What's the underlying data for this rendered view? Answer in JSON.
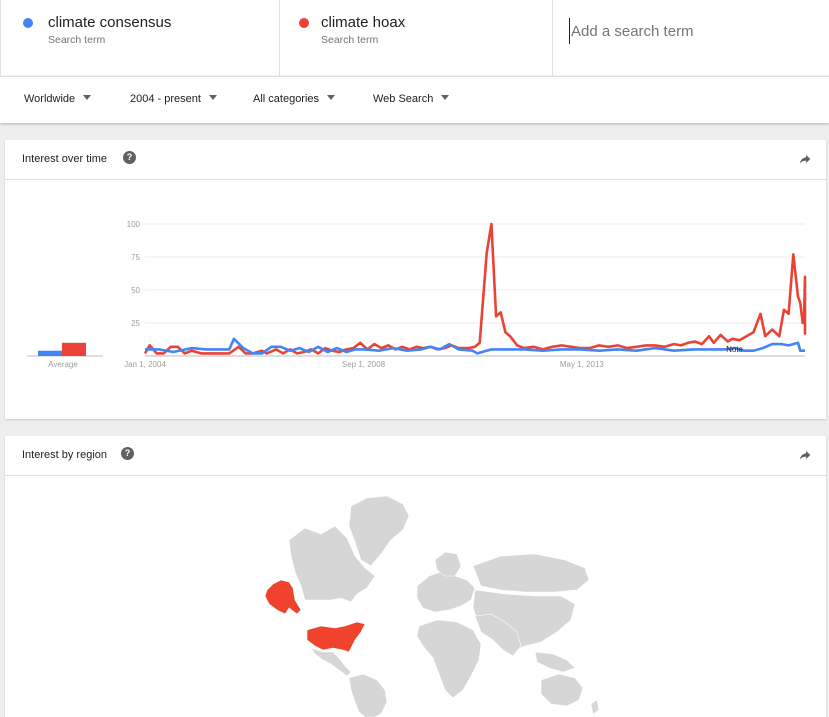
{
  "terms": [
    {
      "name": "climate consensus",
      "sub": "Search term",
      "color": "#4285f4"
    },
    {
      "name": "climate hoax",
      "sub": "Search term",
      "color": "#ea4335"
    }
  ],
  "search": {
    "placeholder": "Add a search term"
  },
  "filters": {
    "region": "Worldwide",
    "period": "2004 - present",
    "category": "All categories",
    "type": "Web Search"
  },
  "interest_over_time": {
    "title": "Interest over time",
    "help": "?"
  },
  "interest_by_region": {
    "title": "Interest by region",
    "help": "?"
  },
  "chart_data": {
    "type": "line",
    "title": "Interest over time",
    "ylim": [
      0,
      100
    ],
    "yticks": [
      "100",
      "75",
      "50",
      "25"
    ],
    "xticks": [
      "Jan 1, 2004",
      "Sep 1, 2008",
      "May 1, 2013"
    ],
    "xtick_years": [
      2004,
      2008.667,
      2013.333
    ],
    "xrange": [
      2004,
      2018.1
    ],
    "annotation": {
      "label": "Note",
      "x": 2016.5
    },
    "average": {
      "label": "Average",
      "values": {
        "climate consensus": 4,
        "climate hoax": 10
      }
    },
    "series": [
      {
        "name": "climate consensus",
        "color": "#4285f4",
        "points": [
          [
            2004,
            5
          ],
          [
            2004.3,
            5
          ],
          [
            2004.6,
            3
          ],
          [
            2005,
            6
          ],
          [
            2005.3,
            5
          ],
          [
            2005.6,
            5
          ],
          [
            2005.8,
            5
          ],
          [
            2005.9,
            13
          ],
          [
            2006.1,
            6
          ],
          [
            2006.3,
            2
          ],
          [
            2006.5,
            2
          ],
          [
            2006.7,
            7
          ],
          [
            2006.9,
            7
          ],
          [
            2007.1,
            4
          ],
          [
            2007.3,
            6
          ],
          [
            2007.5,
            3
          ],
          [
            2007.7,
            7
          ],
          [
            2007.9,
            3
          ],
          [
            2008.1,
            6
          ],
          [
            2008.3,
            3
          ],
          [
            2008.5,
            5
          ],
          [
            2008.7,
            5
          ],
          [
            2009,
            4
          ],
          [
            2009.3,
            6
          ],
          [
            2009.6,
            4
          ],
          [
            2009.9,
            5
          ],
          [
            2010.1,
            7
          ],
          [
            2010.3,
            5
          ],
          [
            2010.5,
            9
          ],
          [
            2010.7,
            5
          ],
          [
            2011,
            4
          ],
          [
            2011.1,
            2
          ],
          [
            2011.4,
            5
          ],
          [
            2011.8,
            5
          ],
          [
            2012.1,
            5
          ],
          [
            2012.5,
            4
          ],
          [
            2012.9,
            5
          ],
          [
            2013.3,
            5
          ],
          [
            2013.7,
            4
          ],
          [
            2014.1,
            5
          ],
          [
            2014.5,
            4
          ],
          [
            2014.9,
            6
          ],
          [
            2015.3,
            4
          ],
          [
            2015.7,
            5
          ],
          [
            2016.1,
            5
          ],
          [
            2016.4,
            5
          ],
          [
            2016.6,
            6
          ],
          [
            2016.8,
            4
          ],
          [
            2017.0,
            4
          ],
          [
            2017.2,
            6
          ],
          [
            2017.4,
            9
          ],
          [
            2017.6,
            9
          ],
          [
            2017.75,
            8
          ],
          [
            2017.85,
            9
          ],
          [
            2017.95,
            10
          ],
          [
            2018.0,
            4
          ],
          [
            2018.1,
            4
          ]
        ]
      },
      {
        "name": "climate hoax",
        "color": "#ea4335",
        "points": [
          [
            2004,
            2
          ],
          [
            2004.1,
            8
          ],
          [
            2004.25,
            2
          ],
          [
            2004.4,
            2
          ],
          [
            2004.55,
            7
          ],
          [
            2004.7,
            7
          ],
          [
            2004.85,
            2
          ],
          [
            2005,
            4
          ],
          [
            2005.2,
            2
          ],
          [
            2005.4,
            2
          ],
          [
            2005.6,
            2
          ],
          [
            2005.8,
            2
          ],
          [
            2006,
            7
          ],
          [
            2006.15,
            2
          ],
          [
            2006.3,
            2
          ],
          [
            2006.5,
            4
          ],
          [
            2006.6,
            2
          ],
          [
            2006.8,
            5
          ],
          [
            2006.95,
            2
          ],
          [
            2007.1,
            5
          ],
          [
            2007.25,
            2
          ],
          [
            2007.4,
            3
          ],
          [
            2007.55,
            5
          ],
          [
            2007.7,
            2
          ],
          [
            2007.85,
            6
          ],
          [
            2008,
            4
          ],
          [
            2008.15,
            3
          ],
          [
            2008.3,
            5
          ],
          [
            2008.45,
            6
          ],
          [
            2008.6,
            10
          ],
          [
            2008.75,
            5
          ],
          [
            2008.9,
            9
          ],
          [
            2009.05,
            6
          ],
          [
            2009.2,
            8
          ],
          [
            2009.35,
            5
          ],
          [
            2009.5,
            7
          ],
          [
            2009.65,
            5
          ],
          [
            2009.8,
            7
          ],
          [
            2009.95,
            6
          ],
          [
            2010.1,
            7
          ],
          [
            2010.25,
            5
          ],
          [
            2010.4,
            6
          ],
          [
            2010.55,
            8
          ],
          [
            2010.7,
            6
          ],
          [
            2010.9,
            6
          ],
          [
            2011.05,
            7
          ],
          [
            2011.15,
            10
          ],
          [
            2011.3,
            78
          ],
          [
            2011.4,
            100
          ],
          [
            2011.5,
            30
          ],
          [
            2011.6,
            33
          ],
          [
            2011.7,
            18
          ],
          [
            2011.8,
            15
          ],
          [
            2011.95,
            8
          ],
          [
            2012.1,
            6
          ],
          [
            2012.3,
            7
          ],
          [
            2012.5,
            5
          ],
          [
            2012.7,
            7
          ],
          [
            2012.9,
            8
          ],
          [
            2013.1,
            7
          ],
          [
            2013.3,
            6
          ],
          [
            2013.5,
            6
          ],
          [
            2013.7,
            8
          ],
          [
            2013.9,
            7
          ],
          [
            2014.1,
            8
          ],
          [
            2014.3,
            6
          ],
          [
            2014.5,
            7
          ],
          [
            2014.7,
            8
          ],
          [
            2014.9,
            8
          ],
          [
            2015.1,
            7
          ],
          [
            2015.3,
            9
          ],
          [
            2015.45,
            8
          ],
          [
            2015.6,
            10
          ],
          [
            2015.75,
            11
          ],
          [
            2015.9,
            9
          ],
          [
            2016.05,
            15
          ],
          [
            2016.15,
            10
          ],
          [
            2016.3,
            16
          ],
          [
            2016.45,
            11
          ],
          [
            2016.55,
            13
          ],
          [
            2016.7,
            12
          ],
          [
            2016.85,
            15
          ],
          [
            2017.0,
            18
          ],
          [
            2017.15,
            32
          ],
          [
            2017.25,
            15
          ],
          [
            2017.4,
            20
          ],
          [
            2017.55,
            15
          ],
          [
            2017.65,
            35
          ],
          [
            2017.75,
            32
          ],
          [
            2017.85,
            77
          ],
          [
            2017.95,
            45
          ],
          [
            2018.0,
            40
          ],
          [
            2018.05,
            25
          ],
          [
            2018.08,
            30
          ],
          [
            2018.1,
            60
          ],
          [
            2018.1,
            17
          ],
          [
            2018.1,
            19
          ]
        ]
      }
    ]
  }
}
